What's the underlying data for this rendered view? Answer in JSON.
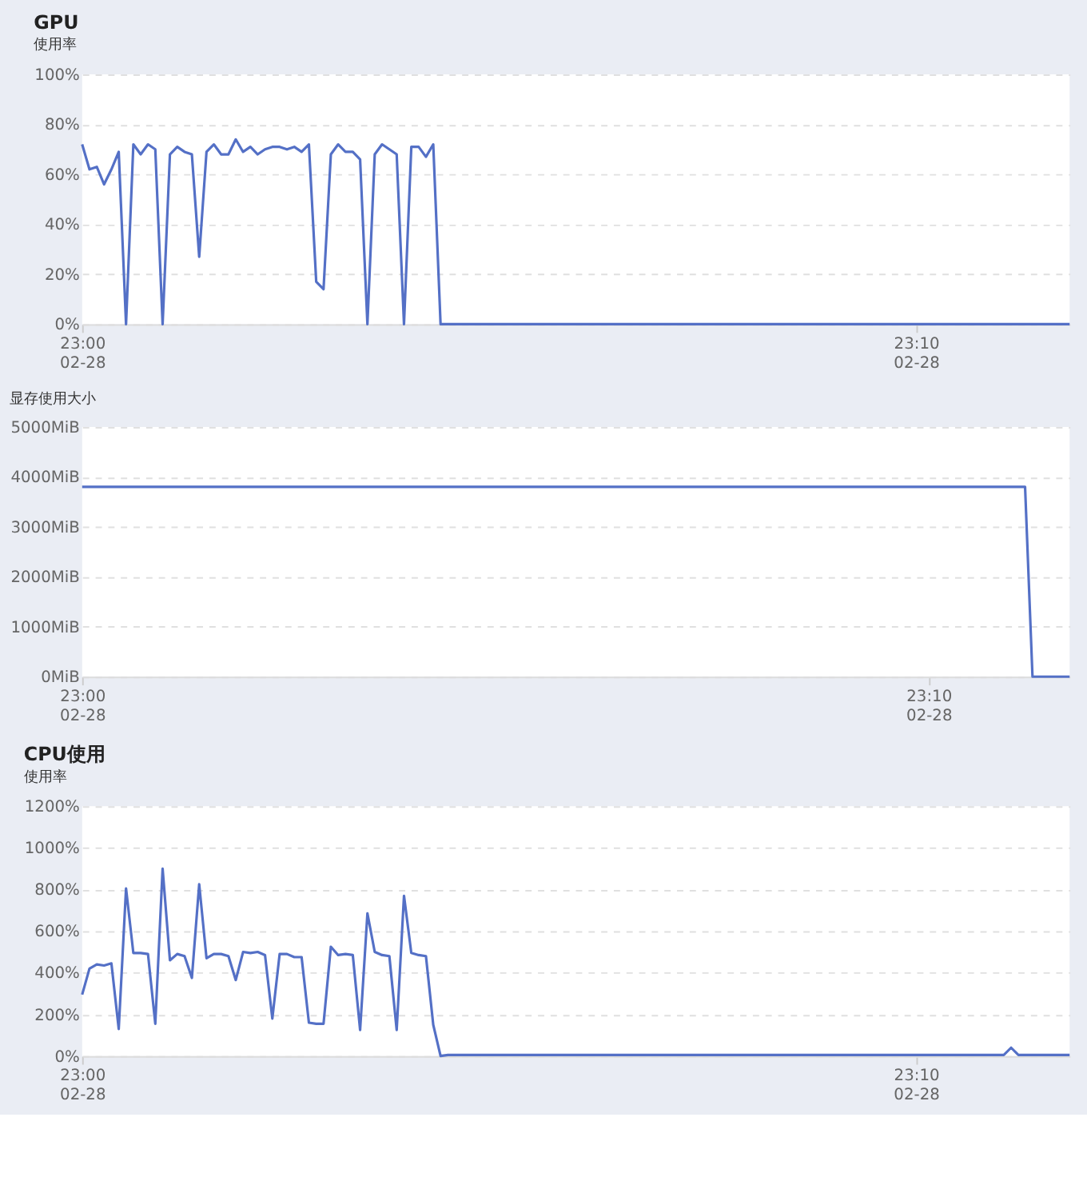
{
  "chart_data": [
    {
      "type": "line",
      "title": "GPU",
      "subtitle": "使用率",
      "grid": "y",
      "marker": "none",
      "line_style": "solid",
      "categories": [
        "23:00\n02-28",
        null,
        null,
        null,
        null,
        null,
        null,
        null,
        null,
        null,
        null,
        null,
        null,
        null,
        null,
        null,
        null,
        null,
        null,
        null,
        null,
        null,
        null,
        null,
        null,
        null,
        null,
        null,
        null,
        null,
        null,
        null,
        null,
        null,
        null,
        null,
        null,
        null,
        null,
        null,
        null,
        null,
        null,
        null,
        null,
        null,
        null,
        null,
        null,
        null,
        null,
        null,
        null,
        null,
        null,
        null,
        null,
        null,
        null,
        null,
        null,
        null,
        null,
        null,
        null,
        null,
        null,
        null,
        null,
        null,
        null,
        null,
        null,
        null,
        null,
        null,
        null,
        null,
        null,
        null,
        null,
        null,
        null,
        null,
        null,
        null,
        null,
        null,
        null,
        null,
        null,
        null,
        null,
        null,
        null,
        null,
        null,
        null,
        null,
        null,
        null,
        null,
        null,
        null,
        null,
        null,
        null,
        null,
        null,
        null,
        null,
        null,
        null,
        null,
        "23:10\n02-28",
        null,
        null,
        null,
        null,
        null,
        null,
        null,
        null,
        null,
        null,
        null,
        null,
        null,
        null,
        null,
        null,
        null,
        null,
        null,
        null,
        null
      ],
      "ylim": [
        0,
        100
      ],
      "yticks": [
        {
          "value": 0,
          "label": "0%"
        },
        {
          "value": 20,
          "label": "20%"
        },
        {
          "value": 40,
          "label": "40%"
        },
        {
          "value": 60,
          "label": "60%"
        },
        {
          "value": 80,
          "label": "80%"
        },
        {
          "value": 100,
          "label": "100%"
        }
      ],
      "series": [
        {
          "color": "#5470c6",
          "values": [
            72,
            62,
            63,
            56,
            62,
            69,
            0,
            72,
            68,
            72,
            70,
            0,
            68,
            71,
            69,
            68,
            27,
            69,
            72,
            68,
            68,
            74,
            69,
            71,
            68,
            70,
            71,
            71,
            70,
            71,
            69,
            72,
            17,
            14,
            68,
            72,
            69,
            69,
            66,
            0,
            68,
            72,
            70,
            68,
            0,
            71,
            71,
            67,
            72,
            0,
            0,
            0,
            0,
            0,
            0,
            0,
            0,
            0,
            0,
            0,
            0,
            0,
            0,
            0,
            0,
            0,
            0,
            0,
            0,
            0,
            0,
            0,
            0,
            0,
            0,
            0,
            0,
            0,
            0,
            0,
            0,
            0,
            0,
            0,
            0,
            0,
            0,
            0,
            0,
            0,
            0,
            0,
            0,
            0,
            0,
            0,
            0,
            0,
            0,
            0,
            0,
            0,
            0,
            0,
            0,
            0,
            0,
            0,
            0,
            0,
            0,
            0,
            0,
            0,
            0,
            0,
            0,
            0,
            0,
            0,
            0,
            0,
            0,
            0,
            0,
            0,
            0,
            0,
            0,
            0,
            0,
            0,
            0,
            0,
            0,
            0
          ]
        }
      ]
    },
    {
      "type": "line",
      "subtitle": "显存使用大小",
      "grid": "y",
      "marker": "none",
      "line_style": "solid",
      "categories": [
        "23:00\n02-28",
        null,
        null,
        null,
        null,
        null,
        null,
        null,
        null,
        null,
        null,
        null,
        null,
        null,
        null,
        null,
        null,
        null,
        null,
        null,
        null,
        null,
        null,
        null,
        null,
        null,
        null,
        null,
        null,
        null,
        null,
        null,
        null,
        null,
        null,
        null,
        null,
        null,
        null,
        null,
        null,
        null,
        null,
        null,
        null,
        null,
        null,
        null,
        null,
        null,
        null,
        null,
        null,
        null,
        null,
        null,
        null,
        null,
        null,
        null,
        null,
        null,
        null,
        null,
        null,
        null,
        null,
        null,
        null,
        null,
        null,
        null,
        null,
        null,
        null,
        null,
        null,
        null,
        null,
        null,
        null,
        null,
        null,
        null,
        null,
        null,
        null,
        null,
        null,
        null,
        null,
        null,
        null,
        null,
        null,
        null,
        null,
        null,
        null,
        null,
        null,
        null,
        null,
        null,
        null,
        null,
        null,
        null,
        null,
        null,
        null,
        null,
        null,
        null,
        "23:10\n02-28",
        null,
        null,
        null,
        null,
        null,
        null,
        null,
        null,
        null,
        null,
        null,
        null,
        null,
        null,
        null,
        null,
        null,
        null,
        null
      ],
      "ylim": [
        0,
        5000
      ],
      "yticks": [
        {
          "value": 0,
          "label": "0MiB"
        },
        {
          "value": 1000,
          "label": "1000MiB"
        },
        {
          "value": 2000,
          "label": "2000MiB"
        },
        {
          "value": 3000,
          "label": "3000MiB"
        },
        {
          "value": 4000,
          "label": "4000MiB"
        },
        {
          "value": 5000,
          "label": "5000MiB"
        }
      ],
      "series": [
        {
          "color": "#5470c6",
          "values": [
            3800,
            3800,
            3800,
            3800,
            3800,
            3800,
            3800,
            3800,
            3800,
            3800,
            3800,
            3800,
            3800,
            3800,
            3800,
            3800,
            3800,
            3800,
            3800,
            3800,
            3800,
            3800,
            3800,
            3800,
            3800,
            3800,
            3800,
            3800,
            3800,
            3800,
            3800,
            3800,
            3800,
            3800,
            3800,
            3800,
            3800,
            3800,
            3800,
            3800,
            3800,
            3800,
            3800,
            3800,
            3800,
            3800,
            3800,
            3800,
            3800,
            3800,
            3800,
            3800,
            3800,
            3800,
            3800,
            3800,
            3800,
            3800,
            3800,
            3800,
            3800,
            3800,
            3800,
            3800,
            3800,
            3800,
            3800,
            3800,
            3800,
            3800,
            3800,
            3800,
            3800,
            3800,
            3800,
            3800,
            3800,
            3800,
            3800,
            3800,
            3800,
            3800,
            3800,
            3800,
            3800,
            3800,
            3800,
            3800,
            3800,
            3800,
            3800,
            3800,
            3800,
            3800,
            3800,
            3800,
            3800,
            3800,
            3800,
            3800,
            3800,
            3800,
            3800,
            3800,
            3800,
            3800,
            3800,
            3800,
            3800,
            3800,
            3800,
            3800,
            3800,
            3800,
            3800,
            3800,
            3800,
            3800,
            3800,
            3800,
            3800,
            3800,
            3800,
            3800,
            3800,
            3800,
            3800,
            3800,
            0,
            0,
            0,
            0,
            0,
            0
          ]
        }
      ]
    },
    {
      "type": "line",
      "title": "CPU使用",
      "subtitle": "使用率",
      "grid": "y",
      "marker": "none",
      "line_style": "solid",
      "categories": [
        "23:00\n02-28",
        null,
        null,
        null,
        null,
        null,
        null,
        null,
        null,
        null,
        null,
        null,
        null,
        null,
        null,
        null,
        null,
        null,
        null,
        null,
        null,
        null,
        null,
        null,
        null,
        null,
        null,
        null,
        null,
        null,
        null,
        null,
        null,
        null,
        null,
        null,
        null,
        null,
        null,
        null,
        null,
        null,
        null,
        null,
        null,
        null,
        null,
        null,
        null,
        null,
        null,
        null,
        null,
        null,
        null,
        null,
        null,
        null,
        null,
        null,
        null,
        null,
        null,
        null,
        null,
        null,
        null,
        null,
        null,
        null,
        null,
        null,
        null,
        null,
        null,
        null,
        null,
        null,
        null,
        null,
        null,
        null,
        null,
        null,
        null,
        null,
        null,
        null,
        null,
        null,
        null,
        null,
        null,
        null,
        null,
        null,
        null,
        null,
        null,
        null,
        null,
        null,
        null,
        null,
        null,
        null,
        null,
        null,
        null,
        null,
        null,
        null,
        null,
        null,
        "23:10\n02-28",
        null,
        null,
        null,
        null,
        null,
        null,
        null,
        null,
        null,
        null,
        null,
        null,
        null,
        null,
        null,
        null,
        null,
        null,
        null,
        null,
        null
      ],
      "ylim": [
        0,
        1200
      ],
      "yticks": [
        {
          "value": 0,
          "label": "0%"
        },
        {
          "value": 200,
          "label": "200%"
        },
        {
          "value": 400,
          "label": "400%"
        },
        {
          "value": 600,
          "label": "600%"
        },
        {
          "value": 800,
          "label": "800%"
        },
        {
          "value": 1000,
          "label": "1000%"
        },
        {
          "value": 1200,
          "label": "1200%"
        }
      ],
      "series": [
        {
          "color": "#5470c6",
          "values": [
            295,
            420,
            440,
            435,
            445,
            130,
            805,
            495,
            495,
            490,
            155,
            900,
            460,
            490,
            480,
            375,
            825,
            470,
            490,
            490,
            480,
            365,
            500,
            495,
            500,
            485,
            180,
            490,
            490,
            475,
            475,
            160,
            155,
            155,
            525,
            485,
            490,
            485,
            125,
            685,
            500,
            485,
            480,
            125,
            770,
            495,
            485,
            480,
            150,
            0,
            5,
            5,
            5,
            5,
            5,
            5,
            5,
            5,
            5,
            5,
            5,
            5,
            5,
            5,
            5,
            5,
            5,
            5,
            5,
            5,
            5,
            5,
            5,
            5,
            5,
            5,
            5,
            5,
            5,
            5,
            5,
            5,
            5,
            5,
            5,
            5,
            5,
            5,
            5,
            5,
            5,
            5,
            5,
            5,
            5,
            5,
            5,
            5,
            5,
            5,
            5,
            5,
            5,
            5,
            5,
            5,
            5,
            5,
            5,
            5,
            5,
            5,
            5,
            5,
            5,
            5,
            5,
            5,
            5,
            5,
            5,
            5,
            5,
            5,
            5,
            5,
            5,
            40,
            5,
            5,
            5,
            5,
            5,
            5,
            5,
            5
          ]
        }
      ]
    }
  ]
}
